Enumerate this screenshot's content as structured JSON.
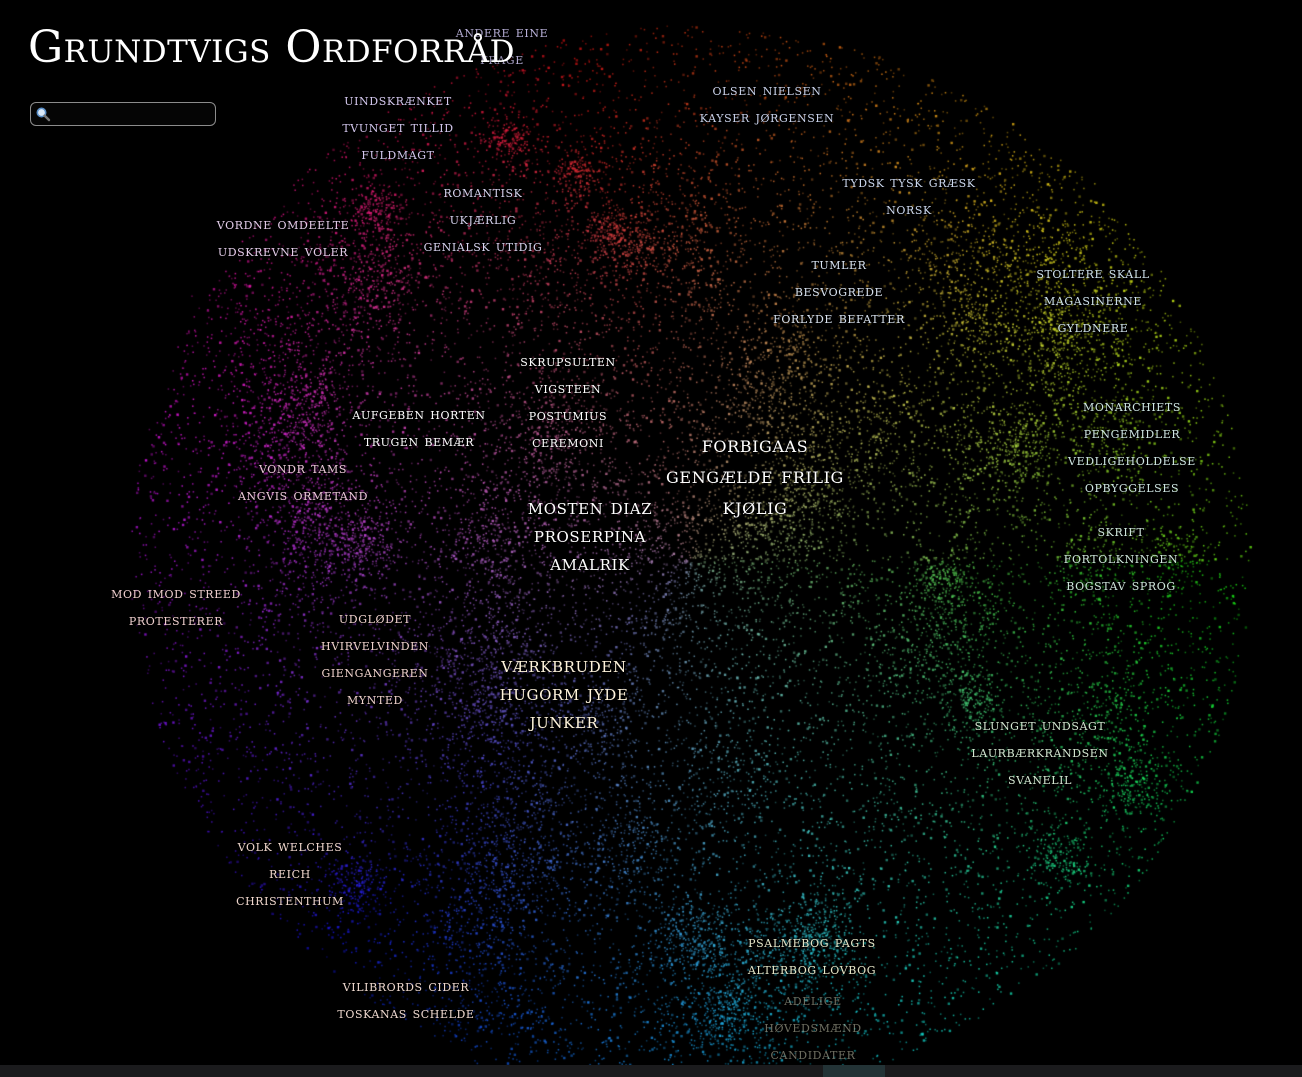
{
  "app": {
    "title": "Grundtvigs Ordforråd"
  },
  "search": {
    "placeholder": "",
    "value": "",
    "icon": "search-icon"
  },
  "map": {
    "background": "#000000",
    "clusters": [
      {
        "id": "andere-eine",
        "labels": [
          "ANDERE EINE",
          "FRAGE"
        ],
        "color": "#b8b0d8",
        "style": "s dim"
      },
      {
        "id": "olsen-nielsen",
        "labels": [
          "OLSEN NIELSEN",
          "KAYSER JØRGENSEN"
        ],
        "color": "#c9d2ea",
        "style": "s"
      },
      {
        "id": "uindskraenket",
        "labels": [
          "UINDSKRÆNKET",
          "TVUNGET TILLID",
          "FULDMAGT"
        ],
        "color": "#d4c8ee",
        "style": "s"
      },
      {
        "id": "tydsk",
        "labels": [
          "TYDSK TYSK GRÆSK",
          "NORSK"
        ],
        "color": "#cdd9ef",
        "style": "s"
      },
      {
        "id": "romantisk",
        "labels": [
          "ROMANTISK",
          "UKJÆRLIG",
          "GENIALSK UTIDIG"
        ],
        "color": "#d7d4ef",
        "style": "s"
      },
      {
        "id": "vordne",
        "labels": [
          "VORDNE OMDEELTE",
          "UDSKREVNE VOLER"
        ],
        "color": "#e3cde9",
        "style": "s"
      },
      {
        "id": "tumler",
        "labels": [
          "TUMLER",
          "BESVOGREDE",
          "FORLYDE BEFATTER"
        ],
        "color": "#d8e2ef",
        "style": "s"
      },
      {
        "id": "stoltere",
        "labels": [
          "STOLTERE SKALL",
          "MAGASINERNE",
          "GYLDNERE"
        ],
        "color": "#cfe2ec",
        "style": "s"
      },
      {
        "id": "skrupsulten",
        "labels": [
          "SKRUPSULTEN",
          "VIGSTEEN",
          "POSTUMIUS",
          "CEREMONI"
        ],
        "color": "#ffffff",
        "style": "s bright"
      },
      {
        "id": "aufgeben",
        "labels": [
          "AUFGEBEN HORTEN",
          "TRUGEN BEMÆR"
        ],
        "color": "#ffffff",
        "style": "s bright"
      },
      {
        "id": "monarchiets",
        "labels": [
          "MONARCHIETS",
          "PENGEMIDLER",
          "VEDLIGEHOLDELSE",
          "OPBYGGELSES"
        ],
        "color": "#cfe6e3",
        "style": "s"
      },
      {
        "id": "forbigaas",
        "labels": [
          "FORBIGAAS",
          "GENGÆLDE FRILIG",
          "KJØLIG"
        ],
        "color": "#ffffff",
        "style": "l bright"
      },
      {
        "id": "vondr",
        "labels": [
          "VONDR TAMS",
          "ANGVIS ORMETAND"
        ],
        "color": "#ecc9d9",
        "style": "s"
      },
      {
        "id": "mosten",
        "labels": [
          "MOSTEN DIAZ",
          "PROSERPINA",
          "AMALRIK"
        ],
        "color": "#ffffff",
        "style": "m bright"
      },
      {
        "id": "skrift",
        "labels": [
          "SKRIFT",
          "FORTOLKNINGEN",
          "BOGSTAV SPROG"
        ],
        "color": "#cfe6dc",
        "style": "s"
      },
      {
        "id": "mod-imod",
        "labels": [
          "MOD IMOD STREED",
          "PROTESTERER"
        ],
        "color": "#efcfce",
        "style": "s"
      },
      {
        "id": "udglodet",
        "labels": [
          "UDGLØDET",
          "HVIRVELVINDEN",
          "GIENGANGEREN",
          "MYNTED"
        ],
        "color": "#efd2cc",
        "style": "s"
      },
      {
        "id": "vaerkbruden",
        "labels": [
          "VÆRKBRUDEN",
          "HUGORM JYDE",
          "JUNKER"
        ],
        "color": "#fff4dc",
        "style": "m bright"
      },
      {
        "id": "slunget",
        "labels": [
          "SLUNGET UNDSAGT",
          "LAURBÆRKRANDSEN",
          "SVANELIL"
        ],
        "color": "#d5e7d2",
        "style": "s"
      },
      {
        "id": "volk",
        "labels": [
          "VOLK WELCHES",
          "REICH",
          "CHRISTENTHUM"
        ],
        "color": "#efd6cc",
        "style": "s"
      },
      {
        "id": "psalmebog",
        "labels": [
          "PSALMEBOG PAGTS",
          "ALTERBOG LOVBOG"
        ],
        "color": "#e6e6c8",
        "style": "s"
      },
      {
        "id": "vilibrords",
        "labels": [
          "VILIBRORDS CIDER",
          "TOSKANAS SCHELDE"
        ],
        "color": "#efd9cf",
        "style": "s"
      },
      {
        "id": "adelige",
        "labels": [
          "ADELIGE",
          "HØVEDSMÆND",
          "CANDIDATER"
        ],
        "color": "#c8c8b0",
        "style": "s dim"
      }
    ]
  }
}
